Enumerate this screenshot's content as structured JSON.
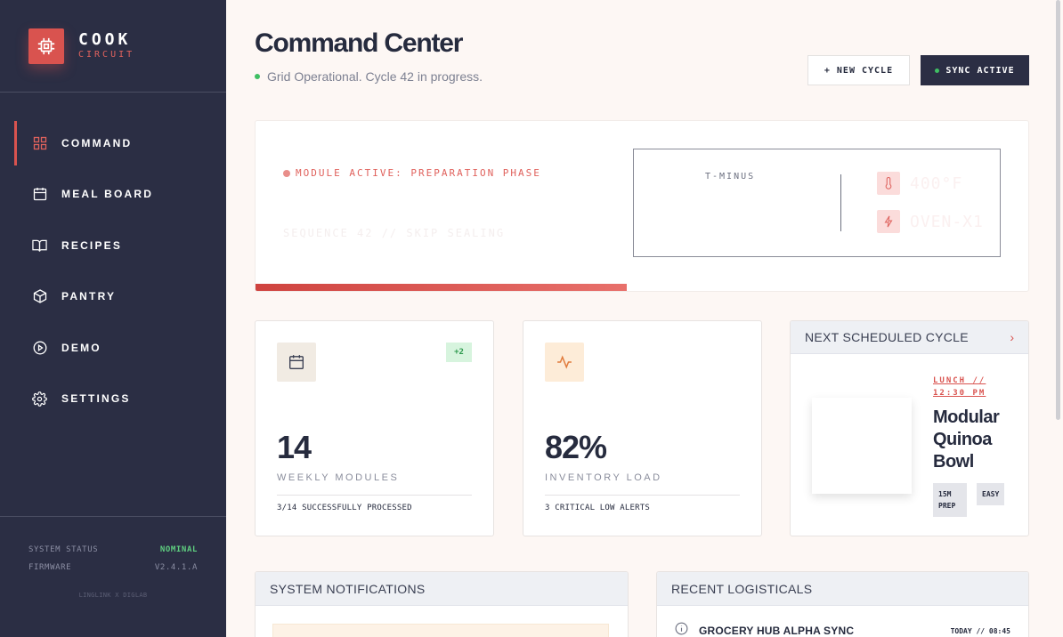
{
  "brand": {
    "title": "COOK",
    "subtitle": "CIRCUIT"
  },
  "nav": [
    {
      "label": "COMMAND",
      "icon": "grid-icon",
      "active": true
    },
    {
      "label": "MEAL BOARD",
      "icon": "calendar-icon"
    },
    {
      "label": "RECIPES",
      "icon": "book-icon"
    },
    {
      "label": "PANTRY",
      "icon": "box-icon"
    },
    {
      "label": "DEMO",
      "icon": "play-icon"
    },
    {
      "label": "SETTINGS",
      "icon": "gear-icon"
    }
  ],
  "system": {
    "status_label": "SYSTEM STATUS",
    "status_value": "NOMINAL",
    "firmware_label": "FIRMWARE",
    "firmware_value": "V2.4.1.A",
    "footer": "LINGLINK X DIGLAB"
  },
  "header": {
    "title": "Command Center",
    "status": "Grid Operational. Cycle 42 in progress.",
    "new_cycle": "+ NEW CYCLE",
    "sync": "SYNC ACTIVE"
  },
  "hero": {
    "module_tag": "MODULE ACTIVE: PREPARATION PHASE",
    "sequence": "SEQUENCE 42 // SKIP SEALING",
    "progress": 0.48,
    "tminus": "T-MINUS",
    "temperature": "400°F",
    "power": "OVEN-X1"
  },
  "cards": {
    "weekly": {
      "badge": "+2",
      "value": "14",
      "label": "WEEKLY MODULES",
      "foot": "3/14 SUCCESSFULLY PROCESSED"
    },
    "inventory": {
      "value": "82%",
      "label": "INVENTORY LOAD",
      "foot": "3 CRITICAL LOW ALERTS"
    }
  },
  "next_cycle": {
    "title": "NEXT SCHEDULED CYCLE",
    "time_line1": "LUNCH //",
    "time_line2": "12:30 PM",
    "meal": "Modular Quinoa Bowl",
    "prep": "15M PREP",
    "difficulty": "EASY"
  },
  "notifications": {
    "title": "SYSTEM NOTIFICATIONS"
  },
  "logisticals": {
    "title": "RECENT LOGISTICALS",
    "items": [
      {
        "title": "GROCERY HUB ALPHA SYNC",
        "time": "TODAY // 08:45"
      }
    ]
  },
  "colors": {
    "accent": "#d9534f",
    "sidebar": "#2b2e44",
    "success": "#3fbf63",
    "background": "#fdf7f4"
  }
}
